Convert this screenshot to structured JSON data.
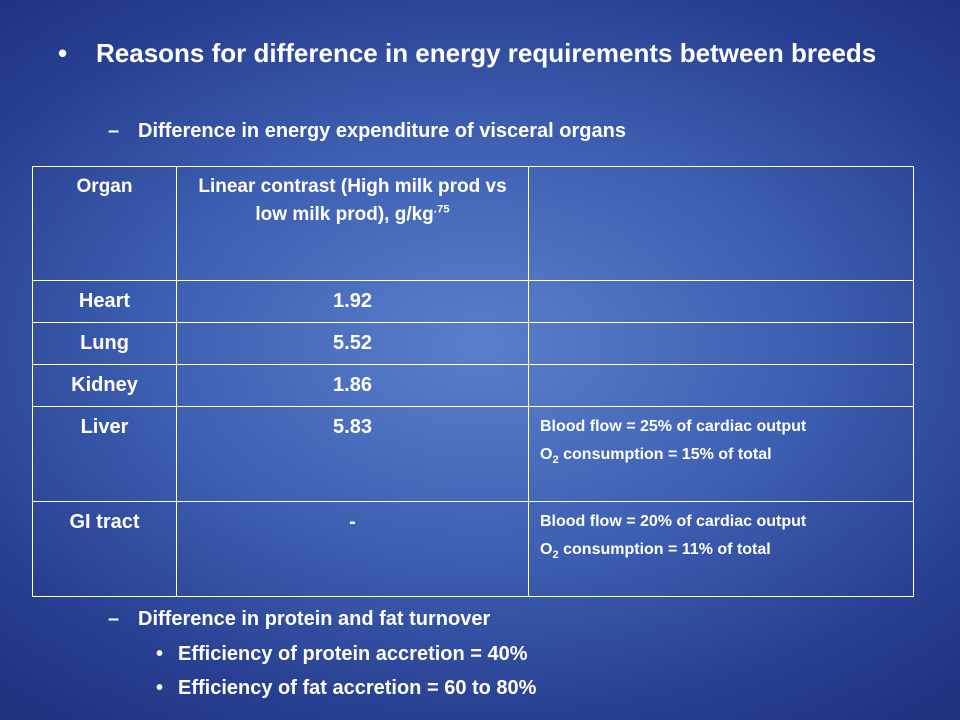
{
  "slide": {
    "main_bullet": "Reasons for difference in energy requirements between breeds",
    "sub_bullet_1": "Difference in energy expenditure of visceral organs",
    "sub_bullet_2": "Difference in protein and fat turnover",
    "sub_sub_bullets": [
      "Efficiency of protein accretion = 40%",
      "Efficiency of fat accretion = 60 to 80%"
    ],
    "bullet_mark": "•",
    "dash_mark": "–"
  },
  "table": {
    "headers": {
      "organ": "Organ",
      "contrast": "Linear contrast (High milk prod vs low milk prod), g/kg",
      "contrast_sup": ".75",
      "notes": ""
    },
    "rows": [
      {
        "organ": "Heart",
        "value": "1.92",
        "note_line1": "",
        "note_line2a": "",
        "note_sub": "",
        "note_line2b": ""
      },
      {
        "organ": "Lung",
        "value": "5.52",
        "note_line1": "",
        "note_line2a": "",
        "note_sub": "",
        "note_line2b": ""
      },
      {
        "organ": "Kidney",
        "value": "1.86",
        "note_line1": "",
        "note_line2a": "",
        "note_sub": "",
        "note_line2b": ""
      },
      {
        "organ": "Liver",
        "value": "5.83",
        "note_line1": "Blood flow = 25% of cardiac output",
        "note_line2a": "O",
        "note_sub": "2",
        "note_line2b": " consumption = 15% of total"
      },
      {
        "organ": "GI tract",
        "value": "-",
        "note_line1": "Blood flow = 20% of cardiac output",
        "note_line2a": "O",
        "note_sub": "2",
        "note_line2b": " consumption = 11% of total"
      }
    ]
  }
}
